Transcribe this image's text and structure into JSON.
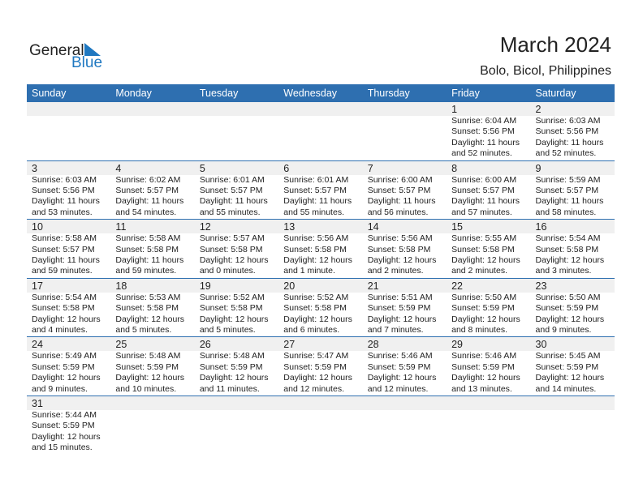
{
  "logo": {
    "text1": "General",
    "text2": "Blue",
    "accent": "#1f78c1"
  },
  "title": "March 2024",
  "location": "Bolo, Bicol, Philippines",
  "weekdays": [
    "Sunday",
    "Monday",
    "Tuesday",
    "Wednesday",
    "Thursday",
    "Friday",
    "Saturday"
  ],
  "colors": {
    "header": "#2e6fb0",
    "strip": "#f0f0f0"
  },
  "weeks": [
    [
      null,
      null,
      null,
      null,
      null,
      {
        "day": "1",
        "sunrise": "Sunrise: 6:04 AM",
        "sunset": "Sunset: 5:56 PM",
        "daylight1": "Daylight: 11 hours",
        "daylight2": "and 52 minutes."
      },
      {
        "day": "2",
        "sunrise": "Sunrise: 6:03 AM",
        "sunset": "Sunset: 5:56 PM",
        "daylight1": "Daylight: 11 hours",
        "daylight2": "and 52 minutes."
      }
    ],
    [
      {
        "day": "3",
        "sunrise": "Sunrise: 6:03 AM",
        "sunset": "Sunset: 5:56 PM",
        "daylight1": "Daylight: 11 hours",
        "daylight2": "and 53 minutes."
      },
      {
        "day": "4",
        "sunrise": "Sunrise: 6:02 AM",
        "sunset": "Sunset: 5:57 PM",
        "daylight1": "Daylight: 11 hours",
        "daylight2": "and 54 minutes."
      },
      {
        "day": "5",
        "sunrise": "Sunrise: 6:01 AM",
        "sunset": "Sunset: 5:57 PM",
        "daylight1": "Daylight: 11 hours",
        "daylight2": "and 55 minutes."
      },
      {
        "day": "6",
        "sunrise": "Sunrise: 6:01 AM",
        "sunset": "Sunset: 5:57 PM",
        "daylight1": "Daylight: 11 hours",
        "daylight2": "and 55 minutes."
      },
      {
        "day": "7",
        "sunrise": "Sunrise: 6:00 AM",
        "sunset": "Sunset: 5:57 PM",
        "daylight1": "Daylight: 11 hours",
        "daylight2": "and 56 minutes."
      },
      {
        "day": "8",
        "sunrise": "Sunrise: 6:00 AM",
        "sunset": "Sunset: 5:57 PM",
        "daylight1": "Daylight: 11 hours",
        "daylight2": "and 57 minutes."
      },
      {
        "day": "9",
        "sunrise": "Sunrise: 5:59 AM",
        "sunset": "Sunset: 5:57 PM",
        "daylight1": "Daylight: 11 hours",
        "daylight2": "and 58 minutes."
      }
    ],
    [
      {
        "day": "10",
        "sunrise": "Sunrise: 5:58 AM",
        "sunset": "Sunset: 5:57 PM",
        "daylight1": "Daylight: 11 hours",
        "daylight2": "and 59 minutes."
      },
      {
        "day": "11",
        "sunrise": "Sunrise: 5:58 AM",
        "sunset": "Sunset: 5:58 PM",
        "daylight1": "Daylight: 11 hours",
        "daylight2": "and 59 minutes."
      },
      {
        "day": "12",
        "sunrise": "Sunrise: 5:57 AM",
        "sunset": "Sunset: 5:58 PM",
        "daylight1": "Daylight: 12 hours",
        "daylight2": "and 0 minutes."
      },
      {
        "day": "13",
        "sunrise": "Sunrise: 5:56 AM",
        "sunset": "Sunset: 5:58 PM",
        "daylight1": "Daylight: 12 hours",
        "daylight2": "and 1 minute."
      },
      {
        "day": "14",
        "sunrise": "Sunrise: 5:56 AM",
        "sunset": "Sunset: 5:58 PM",
        "daylight1": "Daylight: 12 hours",
        "daylight2": "and 2 minutes."
      },
      {
        "day": "15",
        "sunrise": "Sunrise: 5:55 AM",
        "sunset": "Sunset: 5:58 PM",
        "daylight1": "Daylight: 12 hours",
        "daylight2": "and 2 minutes."
      },
      {
        "day": "16",
        "sunrise": "Sunrise: 5:54 AM",
        "sunset": "Sunset: 5:58 PM",
        "daylight1": "Daylight: 12 hours",
        "daylight2": "and 3 minutes."
      }
    ],
    [
      {
        "day": "17",
        "sunrise": "Sunrise: 5:54 AM",
        "sunset": "Sunset: 5:58 PM",
        "daylight1": "Daylight: 12 hours",
        "daylight2": "and 4 minutes."
      },
      {
        "day": "18",
        "sunrise": "Sunrise: 5:53 AM",
        "sunset": "Sunset: 5:58 PM",
        "daylight1": "Daylight: 12 hours",
        "daylight2": "and 5 minutes."
      },
      {
        "day": "19",
        "sunrise": "Sunrise: 5:52 AM",
        "sunset": "Sunset: 5:58 PM",
        "daylight1": "Daylight: 12 hours",
        "daylight2": "and 5 minutes."
      },
      {
        "day": "20",
        "sunrise": "Sunrise: 5:52 AM",
        "sunset": "Sunset: 5:58 PM",
        "daylight1": "Daylight: 12 hours",
        "daylight2": "and 6 minutes."
      },
      {
        "day": "21",
        "sunrise": "Sunrise: 5:51 AM",
        "sunset": "Sunset: 5:59 PM",
        "daylight1": "Daylight: 12 hours",
        "daylight2": "and 7 minutes."
      },
      {
        "day": "22",
        "sunrise": "Sunrise: 5:50 AM",
        "sunset": "Sunset: 5:59 PM",
        "daylight1": "Daylight: 12 hours",
        "daylight2": "and 8 minutes."
      },
      {
        "day": "23",
        "sunrise": "Sunrise: 5:50 AM",
        "sunset": "Sunset: 5:59 PM",
        "daylight1": "Daylight: 12 hours",
        "daylight2": "and 9 minutes."
      }
    ],
    [
      {
        "day": "24",
        "sunrise": "Sunrise: 5:49 AM",
        "sunset": "Sunset: 5:59 PM",
        "daylight1": "Daylight: 12 hours",
        "daylight2": "and 9 minutes."
      },
      {
        "day": "25",
        "sunrise": "Sunrise: 5:48 AM",
        "sunset": "Sunset: 5:59 PM",
        "daylight1": "Daylight: 12 hours",
        "daylight2": "and 10 minutes."
      },
      {
        "day": "26",
        "sunrise": "Sunrise: 5:48 AM",
        "sunset": "Sunset: 5:59 PM",
        "daylight1": "Daylight: 12 hours",
        "daylight2": "and 11 minutes."
      },
      {
        "day": "27",
        "sunrise": "Sunrise: 5:47 AM",
        "sunset": "Sunset: 5:59 PM",
        "daylight1": "Daylight: 12 hours",
        "daylight2": "and 12 minutes."
      },
      {
        "day": "28",
        "sunrise": "Sunrise: 5:46 AM",
        "sunset": "Sunset: 5:59 PM",
        "daylight1": "Daylight: 12 hours",
        "daylight2": "and 12 minutes."
      },
      {
        "day": "29",
        "sunrise": "Sunrise: 5:46 AM",
        "sunset": "Sunset: 5:59 PM",
        "daylight1": "Daylight: 12 hours",
        "daylight2": "and 13 minutes."
      },
      {
        "day": "30",
        "sunrise": "Sunrise: 5:45 AM",
        "sunset": "Sunset: 5:59 PM",
        "daylight1": "Daylight: 12 hours",
        "daylight2": "and 14 minutes."
      }
    ],
    [
      {
        "day": "31",
        "sunrise": "Sunrise: 5:44 AM",
        "sunset": "Sunset: 5:59 PM",
        "daylight1": "Daylight: 12 hours",
        "daylight2": "and 15 minutes."
      },
      null,
      null,
      null,
      null,
      null,
      null
    ]
  ]
}
